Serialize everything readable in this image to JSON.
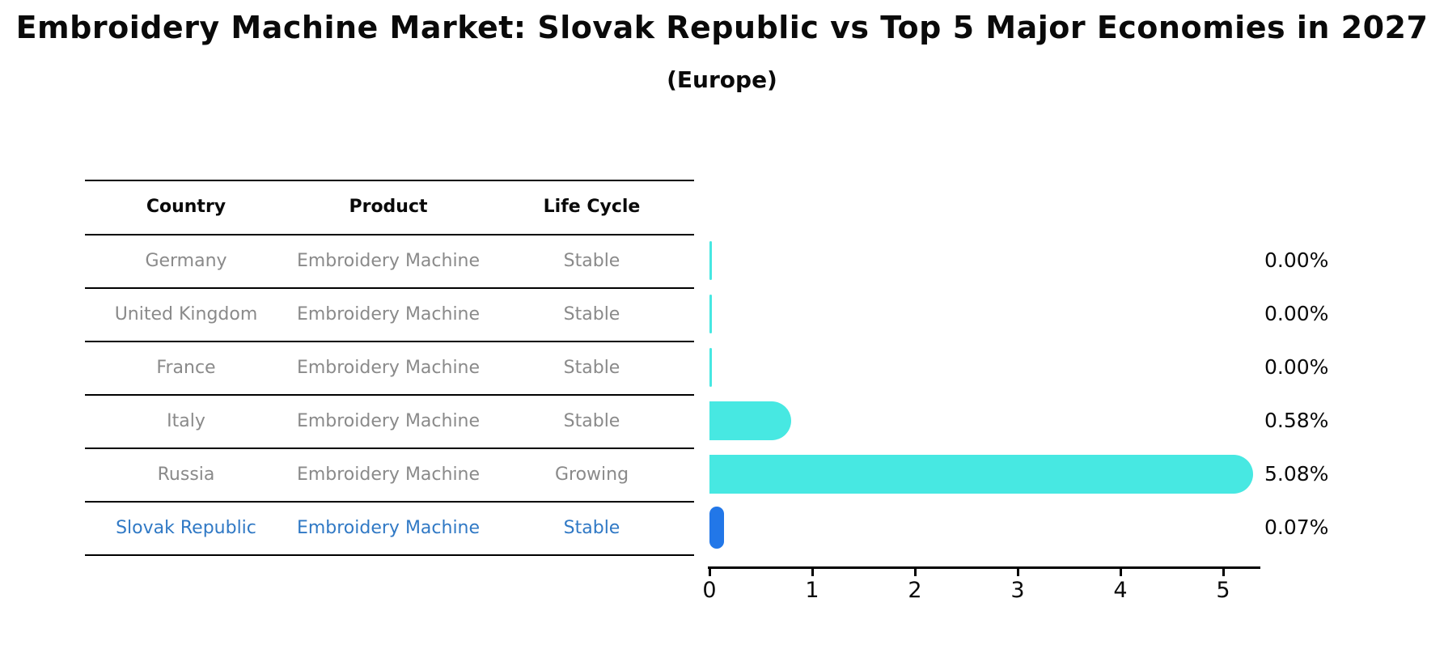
{
  "colors": {
    "bar-cyan": "#47E8E2",
    "bar-blue": "#2277E8",
    "row-gray": "#8a8a8a",
    "row-blue": "#3079C5"
  },
  "table": {
    "headers": [
      "Country",
      "Product",
      "Life Cycle"
    ],
    "rows": [
      {
        "country": "Germany",
        "product": "Embroidery Machine",
        "life_cycle": "Stable",
        "highlighted": false
      },
      {
        "country": "United Kingdom",
        "product": "Embroidery Machine",
        "life_cycle": "Stable",
        "highlighted": false
      },
      {
        "country": "France",
        "product": "Embroidery Machine",
        "life_cycle": "Stable",
        "highlighted": false
      },
      {
        "country": "Italy",
        "product": "Embroidery Machine",
        "life_cycle": "Stable",
        "highlighted": false
      },
      {
        "country": "Russia",
        "product": "Embroidery Machine",
        "life_cycle": "Growing",
        "highlighted": false
      },
      {
        "country": "Slovak Republic",
        "product": "Embroidery Machine",
        "life_cycle": "Stable",
        "highlighted": true
      }
    ]
  },
  "chart_data": {
    "type": "bar",
    "orientation": "horizontal",
    "title": "Embroidery Machine Market: Slovak Republic vs Top 5 Major Economies in 2027",
    "subtitle": "(Europe)",
    "categories": [
      "Germany",
      "United Kingdom",
      "France",
      "Italy",
      "Russia",
      "Slovak Republic"
    ],
    "values": [
      0.0,
      0.0,
      0.0,
      0.58,
      5.08,
      0.07
    ],
    "value_labels": [
      "0.00%",
      "0.00%",
      "0.00%",
      "0.58%",
      "5.08%",
      "0.07%"
    ],
    "bar_colors": [
      "#47E8E2",
      "#47E8E2",
      "#47E8E2",
      "#47E8E2",
      "#47E8E2",
      "#2277E8"
    ],
    "highlight_index": 5,
    "x_ticks": [
      "0",
      "1",
      "2",
      "3",
      "4",
      "5"
    ],
    "xlim": [
      0,
      5.35
    ],
    "grid": false,
    "legend": false
  }
}
